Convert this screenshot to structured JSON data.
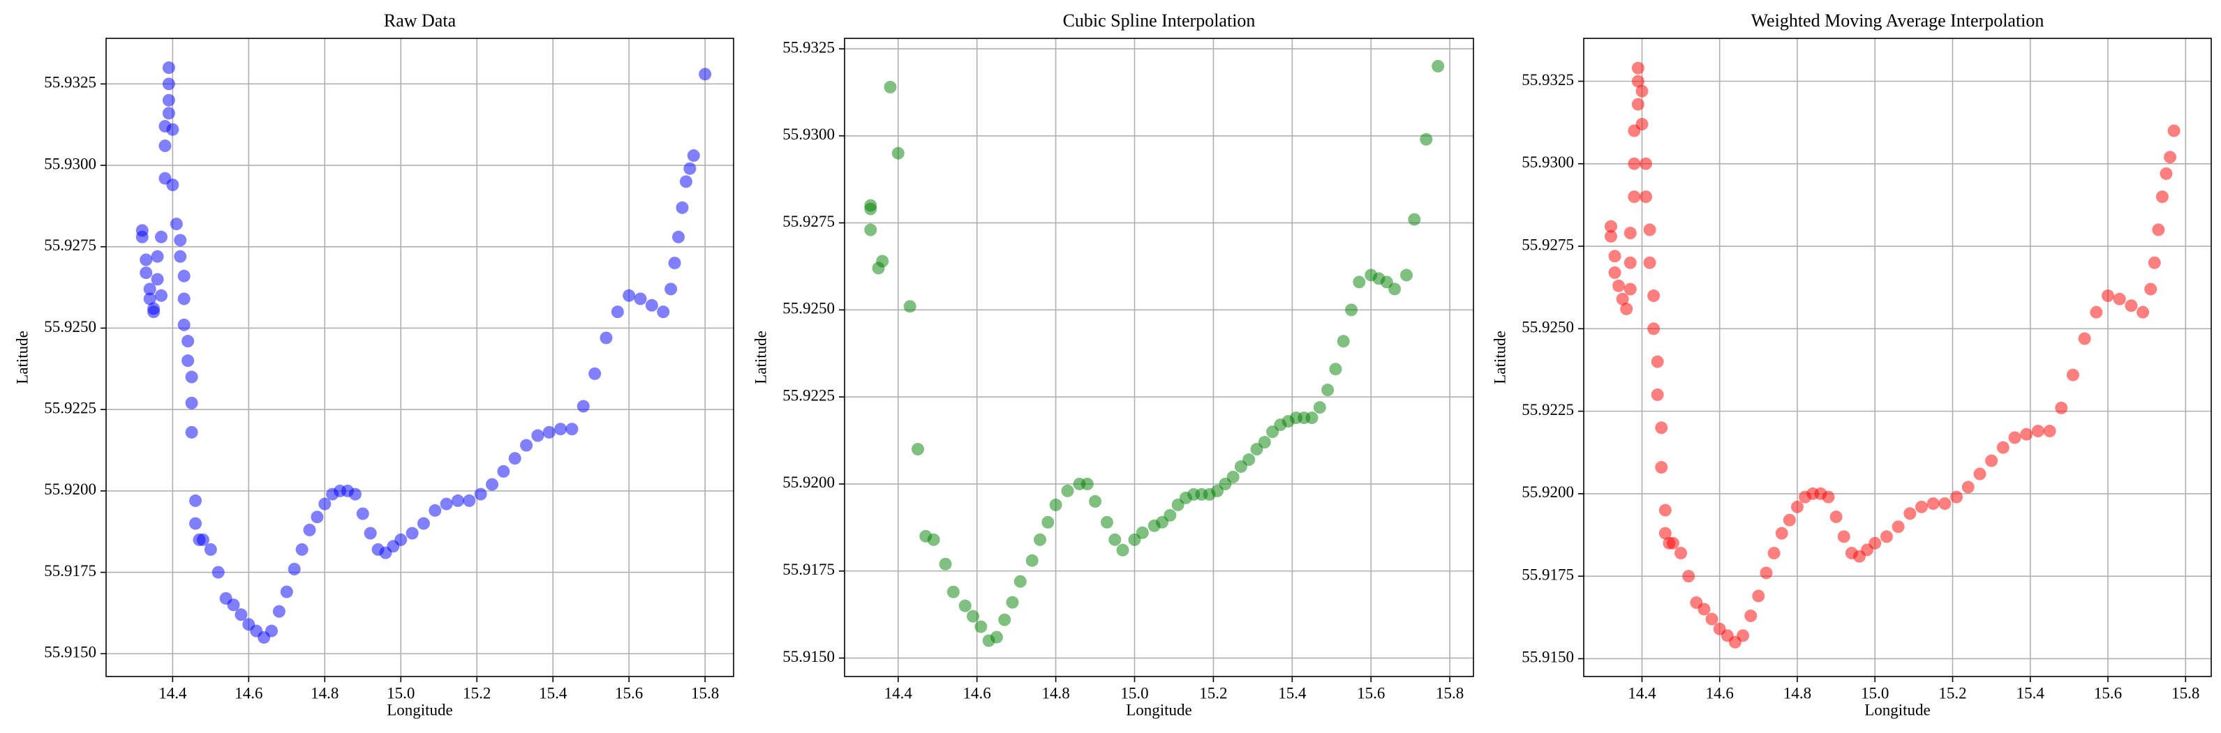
{
  "chart_data": [
    {
      "type": "scatter",
      "title": "Raw Data",
      "x_label": "Longitude",
      "y_label": "Latitude",
      "color": "#0000ff",
      "alpha": 0.5,
      "grid": true,
      "xlim": [
        14.225,
        15.875
      ],
      "ylim": [
        55.9143,
        55.9339
      ],
      "xticks": [
        14.4,
        14.6,
        14.8,
        {
          "value": 15.0,
          "label": "15.0"
        },
        15.2,
        15.4,
        15.6,
        15.8
      ],
      "yticks": [
        {
          "value": 55.915,
          "label": "55.9150"
        },
        55.9175,
        {
          "value": 55.92,
          "label": "55.9200"
        },
        55.9225,
        {
          "value": 55.925,
          "label": "55.9250"
        },
        55.9275,
        {
          "value": 55.93,
          "label": "55.9300"
        },
        55.9325
      ],
      "x": [
        14.32,
        14.32,
        14.33,
        14.33,
        14.34,
        14.34,
        14.35,
        14.35,
        14.36,
        14.36,
        14.37,
        14.37,
        14.38,
        14.38,
        14.38,
        14.39,
        14.39,
        14.39,
        14.39,
        14.4,
        14.4,
        14.41,
        14.42,
        14.42,
        14.43,
        14.43,
        14.43,
        14.44,
        14.44,
        14.45,
        14.45,
        14.45,
        14.46,
        14.46,
        14.47,
        14.48,
        14.5,
        14.52,
        14.54,
        14.56,
        14.58,
        14.6,
        14.62,
        14.64,
        14.66,
        14.68,
        14.7,
        14.72,
        14.74,
        14.76,
        14.78,
        14.8,
        14.82,
        14.84,
        14.86,
        14.88,
        14.9,
        14.92,
        14.94,
        14.96,
        14.98,
        15.0,
        15.03,
        15.06,
        15.09,
        15.12,
        15.15,
        15.18,
        15.21,
        15.24,
        15.27,
        15.3,
        15.33,
        15.36,
        15.39,
        15.42,
        15.45,
        15.48,
        15.51,
        15.54,
        15.57,
        15.6,
        15.63,
        15.66,
        15.69,
        15.71,
        15.72,
        15.73,
        15.74,
        15.75,
        15.76,
        15.77,
        15.8
      ],
      "y": [
        55.928,
        55.9278,
        55.9271,
        55.9267,
        55.9262,
        55.9259,
        55.9256,
        55.9255,
        55.9265,
        55.9272,
        55.9278,
        55.926,
        55.9296,
        55.9306,
        55.9312,
        55.9316,
        55.932,
        55.9325,
        55.933,
        55.9311,
        55.9294,
        55.9282,
        55.9277,
        55.9272,
        55.9266,
        55.9259,
        55.9251,
        55.9246,
        55.924,
        55.9235,
        55.9227,
        55.9218,
        55.9197,
        55.919,
        55.9185,
        55.9185,
        55.9182,
        55.9175,
        55.9167,
        55.9165,
        55.9162,
        55.9159,
        55.9157,
        55.9155,
        55.9157,
        55.9163,
        55.9169,
        55.9176,
        55.9182,
        55.9188,
        55.9192,
        55.9196,
        55.9199,
        55.92,
        55.92,
        55.9199,
        55.9193,
        55.9187,
        55.9182,
        55.9181,
        55.9183,
        55.9185,
        55.9187,
        55.919,
        55.9194,
        55.9196,
        55.9197,
        55.9197,
        55.9199,
        55.9202,
        55.9206,
        55.921,
        55.9214,
        55.9217,
        55.9218,
        55.9219,
        55.9219,
        55.9226,
        55.9236,
        55.9247,
        55.9255,
        55.926,
        55.9259,
        55.9257,
        55.9255,
        55.9262,
        55.927,
        55.9278,
        55.9287,
        55.9295,
        55.9299,
        55.9303,
        55.9328
      ]
    },
    {
      "type": "scatter",
      "title": "Cubic Spline Interpolation",
      "x_label": "Longitude",
      "y_label": "Latitude",
      "color": "#008000",
      "alpha": 0.5,
      "grid": true,
      "xlim": [
        14.264,
        15.86
      ],
      "ylim": [
        55.91447,
        55.9328
      ],
      "xticks": [
        14.4,
        14.6,
        14.8,
        {
          "value": 15.0,
          "label": "15.0"
        },
        15.2,
        15.4,
        15.6,
        15.8
      ],
      "yticks": [
        {
          "value": 55.915,
          "label": "55.9150"
        },
        55.9175,
        {
          "value": 55.92,
          "label": "55.9200"
        },
        55.9225,
        {
          "value": 55.925,
          "label": "55.9250"
        },
        55.9275,
        {
          "value": 55.93,
          "label": "55.9300"
        },
        55.9325
      ],
      "x": [
        14.33,
        14.33,
        14.33,
        14.35,
        14.36,
        14.38,
        14.4,
        14.43,
        14.45,
        14.47,
        14.49,
        14.52,
        14.54,
        14.57,
        14.59,
        14.61,
        14.63,
        14.65,
        14.67,
        14.69,
        14.71,
        14.74,
        14.76,
        14.78,
        14.8,
        14.83,
        14.86,
        14.88,
        14.9,
        14.93,
        14.95,
        14.97,
        15.0,
        15.02,
        15.05,
        15.07,
        15.09,
        15.11,
        15.13,
        15.15,
        15.17,
        15.19,
        15.21,
        15.23,
        15.25,
        15.27,
        15.29,
        15.31,
        15.33,
        15.35,
        15.37,
        15.39,
        15.41,
        15.43,
        15.45,
        15.47,
        15.49,
        15.51,
        15.53,
        15.55,
        15.57,
        15.6,
        15.62,
        15.64,
        15.66,
        15.69,
        15.71,
        15.74,
        15.77
      ],
      "y": [
        55.928,
        55.9279,
        55.9273,
        55.9262,
        55.9264,
        55.9314,
        55.9295,
        55.9251,
        55.921,
        55.9185,
        55.9184,
        55.9177,
        55.9169,
        55.9165,
        55.9162,
        55.9159,
        55.9155,
        55.9156,
        55.9161,
        55.9166,
        55.9172,
        55.9178,
        55.9184,
        55.9189,
        55.9194,
        55.9198,
        55.92,
        55.92,
        55.9195,
        55.9189,
        55.9184,
        55.9181,
        55.9184,
        55.9186,
        55.9188,
        55.9189,
        55.9191,
        55.9194,
        55.9196,
        55.9197,
        55.9197,
        55.9197,
        55.9198,
        55.92,
        55.9202,
        55.9205,
        55.9207,
        55.921,
        55.9212,
        55.9215,
        55.9217,
        55.9218,
        55.9219,
        55.9219,
        55.9219,
        55.9222,
        55.9227,
        55.9233,
        55.9241,
        55.925,
        55.9258,
        55.926,
        55.9259,
        55.9258,
        55.9256,
        55.926,
        55.9276,
        55.9299,
        55.932
      ]
    },
    {
      "type": "scatter",
      "title": "Weighted Moving Average Interpolation",
      "x_label": "Longitude",
      "y_label": "Latitude",
      "color": "#ff0000",
      "alpha": 0.5,
      "grid": true,
      "xlim": [
        14.25,
        15.866
      ],
      "ylim": [
        55.91446,
        55.9338
      ],
      "xticks": [
        14.4,
        14.6,
        14.8,
        {
          "value": 15.0,
          "label": "15.0"
        },
        15.2,
        15.4,
        15.6,
        15.8
      ],
      "yticks": [
        {
          "value": 55.915,
          "label": "55.9150"
        },
        55.9175,
        {
          "value": 55.92,
          "label": "55.9200"
        },
        55.9225,
        {
          "value": 55.925,
          "label": "55.9250"
        },
        55.9275,
        {
          "value": 55.93,
          "label": "55.9300"
        },
        55.9325
      ],
      "x": [
        14.32,
        14.32,
        14.33,
        14.33,
        14.34,
        14.35,
        14.36,
        14.37,
        14.37,
        14.37,
        14.38,
        14.38,
        14.38,
        14.39,
        14.39,
        14.39,
        14.4,
        14.4,
        14.41,
        14.41,
        14.42,
        14.42,
        14.43,
        14.43,
        14.44,
        14.44,
        14.45,
        14.45,
        14.46,
        14.46,
        14.47,
        14.48,
        14.5,
        14.52,
        14.54,
        14.56,
        14.58,
        14.6,
        14.62,
        14.64,
        14.66,
        14.68,
        14.7,
        14.72,
        14.74,
        14.76,
        14.78,
        14.8,
        14.82,
        14.84,
        14.86,
        14.88,
        14.9,
        14.92,
        14.94,
        14.96,
        14.98,
        15.0,
        15.03,
        15.06,
        15.09,
        15.12,
        15.15,
        15.18,
        15.21,
        15.24,
        15.27,
        15.3,
        15.33,
        15.36,
        15.39,
        15.42,
        15.45,
        15.48,
        15.51,
        15.54,
        15.57,
        15.6,
        15.63,
        15.66,
        15.69,
        15.71,
        15.72,
        15.73,
        15.74,
        15.75,
        15.76,
        15.77
      ],
      "y": [
        55.9281,
        55.9278,
        55.9272,
        55.9267,
        55.9263,
        55.9259,
        55.9256,
        55.9262,
        55.927,
        55.9279,
        55.929,
        55.93,
        55.931,
        55.9318,
        55.9325,
        55.9329,
        55.9322,
        55.9312,
        55.93,
        55.929,
        55.928,
        55.927,
        55.926,
        55.925,
        55.924,
        55.923,
        55.922,
        55.9208,
        55.9195,
        55.9188,
        55.9185,
        55.9185,
        55.9182,
        55.9175,
        55.9167,
        55.9165,
        55.9162,
        55.9159,
        55.9157,
        55.9155,
        55.9157,
        55.9163,
        55.9169,
        55.9176,
        55.9182,
        55.9188,
        55.9192,
        55.9196,
        55.9199,
        55.92,
        55.92,
        55.9199,
        55.9193,
        55.9187,
        55.9182,
        55.9181,
        55.9183,
        55.9185,
        55.9187,
        55.919,
        55.9194,
        55.9196,
        55.9197,
        55.9197,
        55.9199,
        55.9202,
        55.9206,
        55.921,
        55.9214,
        55.9217,
        55.9218,
        55.9219,
        55.9219,
        55.9226,
        55.9236,
        55.9247,
        55.9255,
        55.926,
        55.9259,
        55.9257,
        55.9255,
        55.9262,
        55.927,
        55.928,
        55.929,
        55.9297,
        55.9302,
        55.931
      ]
    }
  ]
}
